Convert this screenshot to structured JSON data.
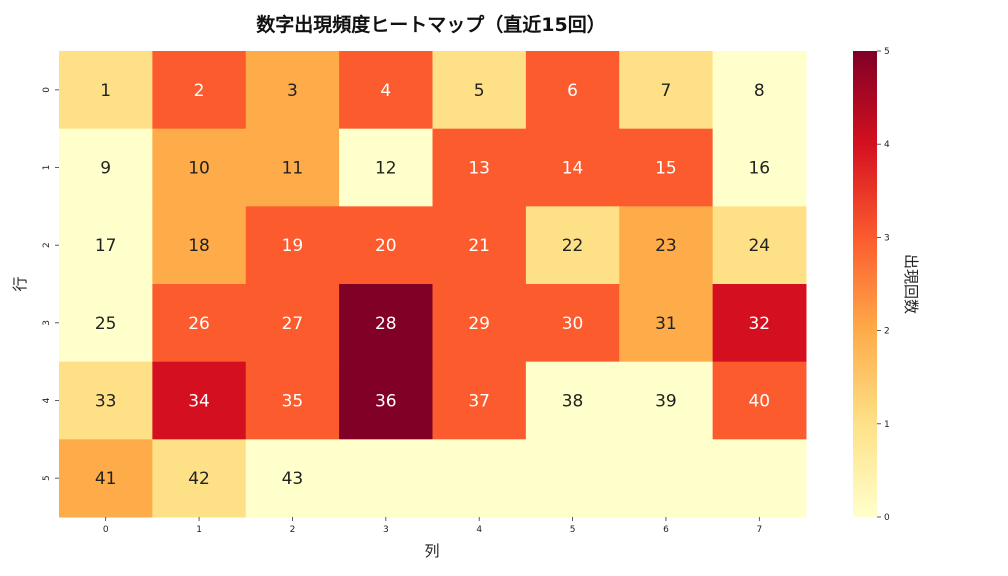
{
  "chart_data": {
    "type": "heatmap",
    "title": "数字出現頻度ヒートマップ（直近15回）",
    "xlabel": "列",
    "ylabel": "行",
    "colorbar_label": "出現回数",
    "x_ticks": [
      "0",
      "1",
      "2",
      "3",
      "4",
      "5",
      "6",
      "7"
    ],
    "y_ticks": [
      "0",
      "1",
      "2",
      "3",
      "4",
      "5"
    ],
    "colorbar_ticks": [
      "0",
      "1",
      "2",
      "3",
      "4",
      "5"
    ],
    "vmin": 0,
    "vmax": 5,
    "colormap": "YlOrRd",
    "cell_labels": [
      [
        "1",
        "2",
        "3",
        "4",
        "5",
        "6",
        "7",
        "8"
      ],
      [
        "9",
        "10",
        "11",
        "12",
        "13",
        "14",
        "15",
        "16"
      ],
      [
        "17",
        "18",
        "19",
        "20",
        "21",
        "22",
        "23",
        "24"
      ],
      [
        "25",
        "26",
        "27",
        "28",
        "29",
        "30",
        "31",
        "32"
      ],
      [
        "33",
        "34",
        "35",
        "36",
        "37",
        "38",
        "39",
        "40"
      ],
      [
        "41",
        "42",
        "43",
        "",
        "",
        "",
        "",
        ""
      ]
    ],
    "values": [
      [
        1,
        3,
        2,
        3,
        1,
        3,
        1,
        0
      ],
      [
        0,
        2,
        2,
        0,
        3,
        3,
        3,
        0
      ],
      [
        0,
        2,
        3,
        3,
        3,
        1,
        2,
        1
      ],
      [
        0,
        3,
        3,
        5,
        3,
        3,
        2,
        4
      ],
      [
        1,
        4,
        3,
        5,
        3,
        0,
        0,
        3
      ],
      [
        2,
        1,
        0,
        0,
        0,
        0,
        0,
        0
      ]
    ]
  }
}
